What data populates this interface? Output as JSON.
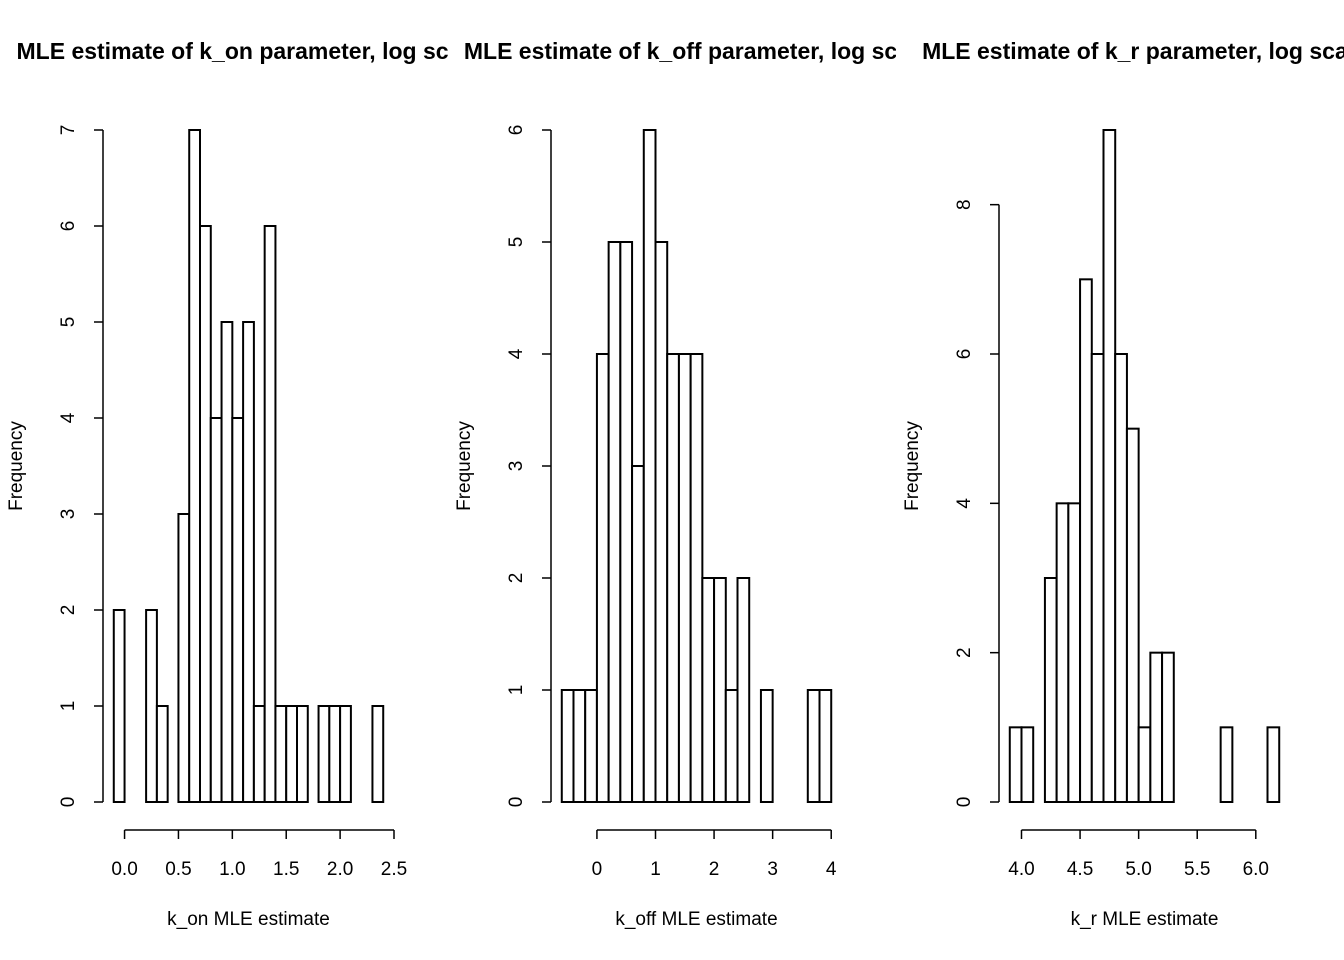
{
  "chart_data": [
    {
      "type": "histogram",
      "title": "MLE estimate of k_on parameter, log scale",
      "x_label": "k_on MLE estimate",
      "y_label": "Frequency",
      "bins": [
        -0.1,
        0,
        0.1,
        0.2,
        0.3,
        0.4,
        0.5,
        0.6,
        0.7,
        0.8,
        0.9,
        1.0,
        1.1,
        1.2,
        1.3,
        1.4,
        1.5,
        1.6,
        1.7,
        1.8,
        1.9,
        2.0,
        2.1,
        2.2,
        2.3,
        2.4
      ],
      "values": [
        2,
        0,
        0,
        2,
        1,
        0,
        3,
        7,
        6,
        4,
        5,
        4,
        5,
        1,
        6,
        1,
        1,
        1,
        0,
        1,
        1,
        1,
        0,
        0,
        1
      ],
      "color": "#ffffff",
      "xlim": [
        -0.2,
        2.5
      ],
      "xticks": [
        {
          "value": 0,
          "label": "0.0"
        },
        0.5,
        {
          "value": 1,
          "label": "1.0"
        },
        1.5,
        {
          "value": 2,
          "label": "2.0"
        },
        2.5
      ],
      "ylim": [
        0,
        7
      ],
      "yticks": [
        0,
        1,
        2,
        3,
        4,
        5,
        6,
        7
      ]
    },
    {
      "type": "histogram",
      "title": "MLE estimate of k_off parameter, log scale",
      "x_label": "k_off MLE estimate",
      "y_label": "Frequency",
      "bins": [
        -0.6,
        -0.4,
        -0.2,
        0,
        0.2,
        0.4,
        0.6,
        0.8,
        1.0,
        1.2,
        1.4,
        1.6,
        1.8,
        2.0,
        2.2,
        2.4,
        2.6,
        2.8,
        3.0,
        3.2,
        3.4,
        3.6,
        3.8,
        4.0
      ],
      "values": [
        1,
        1,
        1,
        4,
        5,
        5,
        3,
        6,
        5,
        4,
        4,
        4,
        2,
        2,
        1,
        2,
        0,
        1,
        0,
        0,
        0,
        1,
        1
      ],
      "color": "#ffffff",
      "xlim": [
        -0.784,
        4.184
      ],
      "xticks": [
        0,
        1,
        2,
        3,
        4
      ],
      "ylim": [
        0,
        6
      ],
      "yticks": [
        0,
        1,
        2,
        3,
        4,
        5,
        6
      ]
    },
    {
      "type": "histogram",
      "title": "MLE estimate of k_r parameter, log scale",
      "x_label": "k_r MLE estimate",
      "y_label": "Frequency",
      "bins": [
        3.9,
        4.0,
        4.1,
        4.2,
        4.3,
        4.4,
        4.5,
        4.6,
        4.7,
        4.8,
        4.9,
        5.0,
        5.1,
        5.2,
        5.3,
        5.4,
        5.5,
        5.6,
        5.7,
        5.8,
        5.9,
        6.0,
        6.1,
        6.2
      ],
      "values": [
        1,
        1,
        0,
        3,
        4,
        4,
        7,
        6,
        9,
        6,
        5,
        1,
        2,
        2,
        0,
        0,
        0,
        0,
        1,
        0,
        0,
        0,
        1
      ],
      "color": "#ffffff",
      "xlim": [
        3.808,
        6.292
      ],
      "xticks": [
        {
          "value": 4,
          "label": "4.0"
        },
        4.5,
        {
          "value": 5,
          "label": "5.0"
        },
        5.5,
        {
          "value": 6,
          "label": "6.0"
        }
      ],
      "ylim": [
        0,
        9
      ],
      "yticks": [
        0,
        2,
        4,
        6,
        8
      ]
    }
  ]
}
